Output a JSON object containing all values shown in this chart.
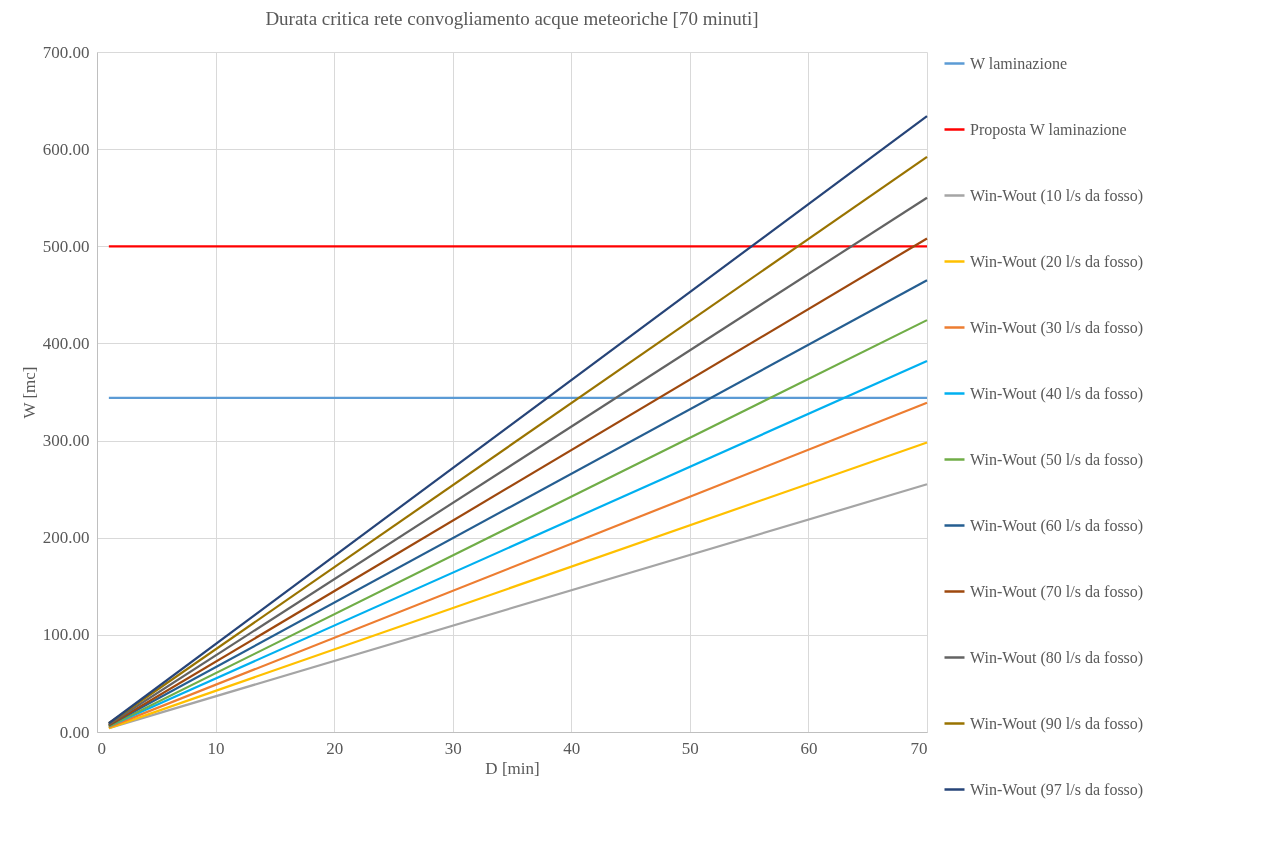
{
  "chart_data": {
    "type": "line",
    "title": "Durata critica rete convogliamento acque meteoriche [70 minuti]",
    "xlabel": "D [min]",
    "ylabel": "W [mc]",
    "x": [
      1,
      70
    ],
    "xlim": [
      0,
      70
    ],
    "xticks": [
      0,
      10,
      20,
      30,
      40,
      50,
      60,
      70
    ],
    "ylim": [
      0,
      700
    ],
    "yticks": [
      {
        "value": 0,
        "label": "0.00"
      },
      {
        "value": 100,
        "label": "100.00"
      },
      {
        "value": 200,
        "label": "200.00"
      },
      {
        "value": 300,
        "label": "300.00"
      },
      {
        "value": 400,
        "label": "400.00"
      },
      {
        "value": 500,
        "label": "500.00"
      },
      {
        "value": 600,
        "label": "600.00"
      },
      {
        "value": 700,
        "label": "700.00"
      }
    ],
    "grid": true,
    "legend": "right",
    "marker": "none",
    "line_style": "solid",
    "series": [
      {
        "name": "W laminazione",
        "color": "#5b9bd5",
        "values": [
          344,
          344
        ]
      },
      {
        "name": "Proposta W laminazione",
        "color": "#ff0000",
        "values": [
          500,
          500
        ]
      },
      {
        "name": "Win-Wout (10 l/s da fosso)",
        "color": "#a5a5a5",
        "values": [
          4,
          255
        ]
      },
      {
        "name": "Win-Wout (20 l/s da fosso)",
        "color": "#ffc000",
        "values": [
          4,
          298
        ]
      },
      {
        "name": "Win-Wout (30 l/s da fosso)",
        "color": "#ed7d31",
        "values": [
          5,
          339
        ]
      },
      {
        "name": "Win-Wout (40 l/s da fosso)",
        "color": "#00b0f0",
        "values": [
          6,
          382
        ]
      },
      {
        "name": "Win-Wout (50 l/s da fosso)",
        "color": "#70ad47",
        "values": [
          6,
          424
        ]
      },
      {
        "name": "Win-Wout (60 l/s da fosso)",
        "color": "#255e91",
        "values": [
          7,
          465
        ]
      },
      {
        "name": "Win-Wout (70 l/s da fosso)",
        "color": "#9e480e",
        "values": [
          7,
          508
        ]
      },
      {
        "name": "Win-Wout (80 l/s da fosso)",
        "color": "#636363",
        "values": [
          8,
          550
        ]
      },
      {
        "name": "Win-Wout (90 l/s da fosso)",
        "color": "#997300",
        "values": [
          9,
          592
        ]
      },
      {
        "name": "Win-Wout (97 l/s da fosso)",
        "color": "#264478",
        "values": [
          9,
          634
        ]
      }
    ]
  }
}
